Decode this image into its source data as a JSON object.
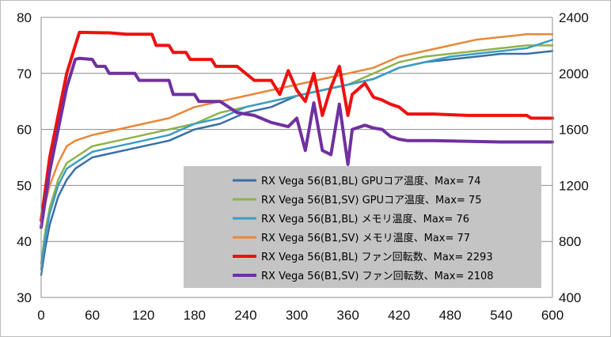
{
  "chart_data": {
    "type": "line",
    "title": "",
    "xlabel": "",
    "ylabel": "",
    "y2label": "",
    "xlim": [
      0,
      600
    ],
    "ylim": [
      30,
      80
    ],
    "y2lim": [
      400,
      2400
    ],
    "xticks": [
      "0",
      "60",
      "120",
      "180",
      "240",
      "300",
      "360",
      "420",
      "480",
      "540",
      "600"
    ],
    "yticks": [
      "30",
      "40",
      "50",
      "60",
      "70",
      "80"
    ],
    "y2ticks": [
      "400",
      "800",
      "1200",
      "1600",
      "2000",
      "2400"
    ],
    "grid": "horizontal",
    "legend_position": "center-right",
    "series": [
      {
        "name": "RX Vega 56(B1,BL) GPUコア温度、Max= 74",
        "axis": "left",
        "color": "#3a6ea8",
        "x": [
          0,
          5,
          10,
          20,
          30,
          40,
          60,
          90,
          120,
          150,
          180,
          210,
          240,
          270,
          300,
          330,
          360,
          390,
          420,
          450,
          480,
          510,
          540,
          570,
          600
        ],
        "y": [
          34,
          39,
          43,
          48,
          51,
          53,
          55,
          56,
          57,
          58,
          60,
          61,
          63,
          64,
          66,
          67,
          68,
          69,
          71,
          72,
          72.5,
          73,
          73.5,
          73.5,
          74
        ]
      },
      {
        "name": "RX Vega 56(B1,SV) GPUコア温度、Max= 75",
        "axis": "left",
        "color": "#8fb24a",
        "x": [
          0,
          5,
          10,
          20,
          30,
          40,
          60,
          90,
          120,
          150,
          180,
          210,
          240,
          270,
          300,
          330,
          360,
          390,
          420,
          450,
          480,
          510,
          540,
          570,
          600
        ],
        "y": [
          36,
          42,
          46,
          51,
          54,
          55,
          57,
          58,
          59,
          60,
          61,
          63,
          64,
          65,
          66,
          67,
          68,
          70,
          72,
          73,
          73.5,
          74,
          74.5,
          75,
          75
        ]
      },
      {
        "name": "RX Vega 56(B1,BL) メモリ温度、Max= 76",
        "axis": "left",
        "color": "#3c9dc2",
        "x": [
          0,
          5,
          10,
          20,
          30,
          40,
          60,
          90,
          120,
          150,
          180,
          210,
          240,
          270,
          300,
          330,
          360,
          390,
          420,
          450,
          480,
          510,
          540,
          570,
          600
        ],
        "y": [
          35,
          41,
          45,
          50,
          53,
          54,
          56,
          57,
          58,
          59,
          61,
          62,
          64,
          65,
          66,
          67,
          68,
          69,
          71,
          72,
          73,
          73.5,
          74,
          74.5,
          76
        ]
      },
      {
        "name": "RX Vega 56(B1,SV) メモリ温度、Max= 77",
        "axis": "left",
        "color": "#e8883a",
        "x": [
          0,
          5,
          10,
          20,
          30,
          40,
          60,
          90,
          120,
          150,
          180,
          210,
          240,
          270,
          300,
          330,
          360,
          390,
          420,
          450,
          480,
          510,
          540,
          570,
          600
        ],
        "y": [
          43,
          47,
          50,
          54,
          57,
          58,
          59,
          60,
          61,
          62,
          64,
          65,
          66,
          67,
          68,
          69,
          70,
          71,
          73,
          74,
          75,
          76,
          76.5,
          77,
          77
        ]
      },
      {
        "name": "RX Vega 56(B1,BL) ファン回転数、Max= 2293",
        "axis": "right",
        "color": "#ee1111",
        "x": [
          0,
          10,
          20,
          30,
          40,
          45,
          80,
          100,
          130,
          135,
          150,
          155,
          170,
          175,
          200,
          205,
          230,
          250,
          270,
          280,
          290,
          300,
          310,
          320,
          330,
          340,
          350,
          360,
          365,
          380,
          390,
          400,
          410,
          420,
          430,
          460,
          500,
          540,
          570,
          575,
          600
        ],
        "y": [
          950,
          1400,
          1700,
          2000,
          2200,
          2293,
          2290,
          2280,
          2280,
          2200,
          2200,
          2150,
          2150,
          2100,
          2100,
          2050,
          2050,
          1950,
          1950,
          1850,
          2020,
          1880,
          1800,
          2000,
          1700,
          1900,
          2050,
          1700,
          1850,
          1930,
          1830,
          1810,
          1780,
          1760,
          1710,
          1710,
          1700,
          1700,
          1700,
          1680,
          1680
        ]
      },
      {
        "name": "RX Vega 56(B1,SV) ファン回転数、Max= 2108",
        "axis": "right",
        "color": "#7030a0",
        "x": [
          0,
          10,
          20,
          30,
          40,
          45,
          60,
          65,
          75,
          80,
          110,
          115,
          150,
          155,
          180,
          185,
          210,
          230,
          250,
          270,
          290,
          300,
          310,
          320,
          330,
          340,
          350,
          360,
          365,
          380,
          390,
          400,
          410,
          420,
          430,
          460,
          500,
          540,
          570,
          600
        ],
        "y": [
          900,
          1300,
          1600,
          1900,
          2100,
          2108,
          2100,
          2050,
          2050,
          2000,
          2000,
          1950,
          1950,
          1850,
          1850,
          1800,
          1800,
          1720,
          1700,
          1650,
          1620,
          1680,
          1450,
          1790,
          1450,
          1420,
          1780,
          1350,
          1600,
          1630,
          1610,
          1600,
          1550,
          1530,
          1520,
          1520,
          1515,
          1510,
          1510,
          1510
        ]
      }
    ]
  }
}
